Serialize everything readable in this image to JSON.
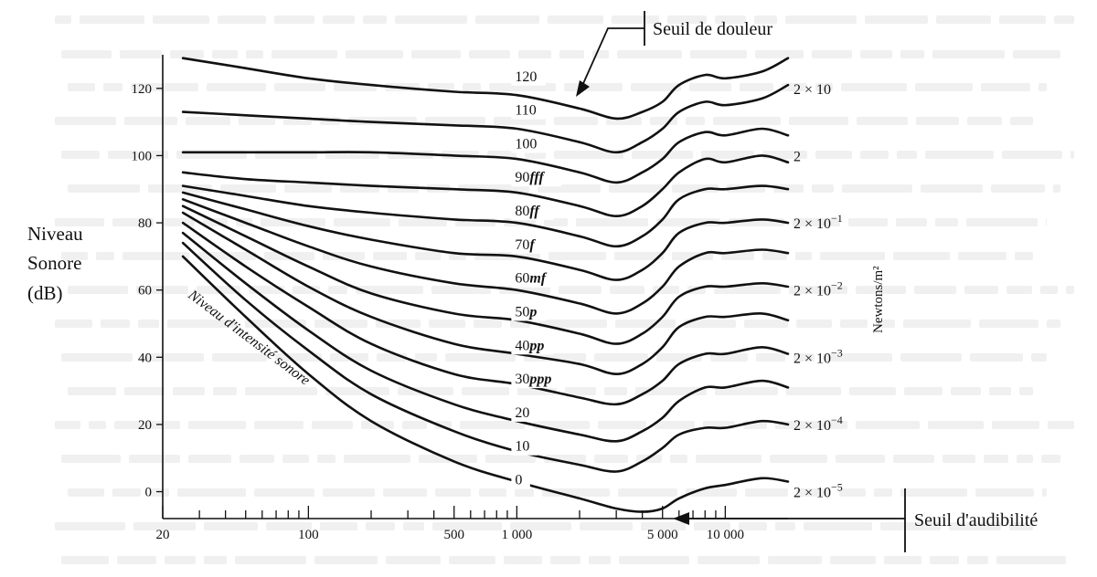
{
  "page": {
    "background_text_color": "#c9c9c9",
    "line_color": "#111111"
  },
  "chart_data": {
    "type": "line",
    "title": "",
    "ylabel_lines": [
      "Niveau",
      "Sonore",
      "(dB)"
    ],
    "right_axis_label": "Newtons/m²",
    "xscale": "log",
    "xlim": [
      20,
      20000
    ],
    "ylim": [
      -8,
      130
    ],
    "y_ticks": [
      "0",
      "20",
      "40",
      "60",
      "80",
      "100",
      "120"
    ],
    "x_tick_labels": [
      {
        "value": 20,
        "label": "20"
      },
      {
        "value": 100,
        "label": "100"
      },
      {
        "value": 500,
        "label": "500"
      },
      {
        "value": 1000,
        "label": "1 000"
      },
      {
        "value": 5000,
        "label": "5 000"
      },
      {
        "value": 10000,
        "label": "10 000"
      }
    ],
    "x_minor_ticks": [
      30,
      40,
      50,
      60,
      70,
      80,
      90,
      200,
      300,
      400,
      600,
      700,
      800,
      900,
      2000,
      3000,
      4000,
      6000,
      7000,
      8000,
      9000
    ],
    "diagonal_label": "Niveau d'intensité sonore",
    "callouts": {
      "pain": "Seuil de douleur",
      "hearing": "Seuil d'audibilité"
    },
    "pressure_labels": [
      {
        "base": "2 × 10",
        "exp": "",
        "level": 120
      },
      {
        "base": "2",
        "exp": "",
        "level": 100
      },
      {
        "base": "2 × 10",
        "exp": "−1",
        "level": 80
      },
      {
        "base": "2 × 10",
        "exp": "−2",
        "level": 60
      },
      {
        "base": "2 × 10",
        "exp": "−3",
        "level": 40
      },
      {
        "base": "2 × 10",
        "exp": "−4",
        "level": 20
      },
      {
        "base": "2 × 10",
        "exp": "−5",
        "level": 0
      }
    ],
    "series": [
      {
        "name": "120",
        "num": "120",
        "suffix": "",
        "label_pos": [
          1000,
          120
        ],
        "points": [
          [
            25,
            129
          ],
          [
            50,
            126
          ],
          [
            100,
            123
          ],
          [
            200,
            121
          ],
          [
            500,
            119
          ],
          [
            1000,
            118
          ],
          [
            2000,
            114
          ],
          [
            3000,
            111
          ],
          [
            4000,
            113
          ],
          [
            5000,
            116
          ],
          [
            6000,
            121
          ],
          [
            8000,
            124
          ],
          [
            10000,
            123
          ],
          [
            15000,
            125
          ],
          [
            20000,
            129
          ]
        ]
      },
      {
        "name": "110",
        "num": "110",
        "suffix": "",
        "label_pos": [
          1000,
          110
        ],
        "points": [
          [
            25,
            113
          ],
          [
            50,
            112
          ],
          [
            100,
            111
          ],
          [
            200,
            110
          ],
          [
            500,
            109
          ],
          [
            1000,
            108
          ],
          [
            2000,
            104
          ],
          [
            3000,
            101
          ],
          [
            4000,
            104
          ],
          [
            5000,
            108
          ],
          [
            6000,
            113
          ],
          [
            8000,
            116
          ],
          [
            10000,
            115
          ],
          [
            15000,
            117
          ],
          [
            20000,
            121
          ]
        ]
      },
      {
        "name": "100",
        "num": "100",
        "suffix": "",
        "label_pos": [
          1000,
          100
        ],
        "points": [
          [
            25,
            101
          ],
          [
            50,
            101
          ],
          [
            100,
            101
          ],
          [
            200,
            101
          ],
          [
            500,
            100
          ],
          [
            1000,
            99
          ],
          [
            2000,
            95
          ],
          [
            3000,
            92
          ],
          [
            4000,
            95
          ],
          [
            5000,
            99
          ],
          [
            6000,
            104
          ],
          [
            8000,
            107
          ],
          [
            10000,
            106
          ],
          [
            15000,
            108
          ],
          [
            20000,
            106
          ]
        ]
      },
      {
        "name": "90fff",
        "num": "90",
        "suffix": "fff",
        "label_pos": [
          1000,
          90
        ],
        "points": [
          [
            25,
            95
          ],
          [
            50,
            93
          ],
          [
            100,
            92
          ],
          [
            200,
            91
          ],
          [
            500,
            90
          ],
          [
            1000,
            89
          ],
          [
            2000,
            85
          ],
          [
            3000,
            82
          ],
          [
            4000,
            85
          ],
          [
            5000,
            90
          ],
          [
            6000,
            95
          ],
          [
            8000,
            99
          ],
          [
            10000,
            98
          ],
          [
            15000,
            100
          ],
          [
            20000,
            98
          ]
        ]
      },
      {
        "name": "80ff",
        "num": "80",
        "suffix": "ff",
        "label_pos": [
          1000,
          80
        ],
        "points": [
          [
            25,
            91
          ],
          [
            50,
            88
          ],
          [
            100,
            85
          ],
          [
            200,
            83
          ],
          [
            500,
            81
          ],
          [
            1000,
            80
          ],
          [
            2000,
            76
          ],
          [
            3000,
            73
          ],
          [
            4000,
            76
          ],
          [
            5000,
            81
          ],
          [
            6000,
            87
          ],
          [
            8000,
            90
          ],
          [
            10000,
            90
          ],
          [
            15000,
            91
          ],
          [
            20000,
            90
          ]
        ]
      },
      {
        "name": "70f",
        "num": "70",
        "suffix": "f",
        "label_pos": [
          1000,
          70
        ],
        "points": [
          [
            25,
            89
          ],
          [
            50,
            84
          ],
          [
            100,
            79
          ],
          [
            200,
            75
          ],
          [
            500,
            71
          ],
          [
            1000,
            70
          ],
          [
            2000,
            66
          ],
          [
            3000,
            63
          ],
          [
            4000,
            66
          ],
          [
            5000,
            71
          ],
          [
            6000,
            77
          ],
          [
            8000,
            80
          ],
          [
            10000,
            80
          ],
          [
            15000,
            81
          ],
          [
            20000,
            80
          ]
        ]
      },
      {
        "name": "60mf",
        "num": "60",
        "suffix": "mf",
        "label_pos": [
          1000,
          60
        ],
        "points": [
          [
            25,
            87
          ],
          [
            50,
            80
          ],
          [
            100,
            73
          ],
          [
            200,
            67
          ],
          [
            500,
            62
          ],
          [
            1000,
            60
          ],
          [
            2000,
            56
          ],
          [
            3000,
            53
          ],
          [
            4000,
            56
          ],
          [
            5000,
            61
          ],
          [
            6000,
            67
          ],
          [
            8000,
            71
          ],
          [
            10000,
            71
          ],
          [
            15000,
            72
          ],
          [
            20000,
            71
          ]
        ]
      },
      {
        "name": "50p",
        "num": "50",
        "suffix": "p",
        "label_pos": [
          1000,
          50
        ],
        "points": [
          [
            25,
            85
          ],
          [
            50,
            76
          ],
          [
            100,
            67
          ],
          [
            200,
            59
          ],
          [
            500,
            53
          ],
          [
            1000,
            51
          ],
          [
            2000,
            47
          ],
          [
            3000,
            44
          ],
          [
            4000,
            47
          ],
          [
            5000,
            52
          ],
          [
            6000,
            58
          ],
          [
            8000,
            61
          ],
          [
            10000,
            61
          ],
          [
            15000,
            62
          ],
          [
            20000,
            61
          ]
        ]
      },
      {
        "name": "40pp",
        "num": "40",
        "suffix": "pp",
        "label_pos": [
          1000,
          40
        ],
        "points": [
          [
            25,
            83
          ],
          [
            50,
            72
          ],
          [
            100,
            61
          ],
          [
            200,
            52
          ],
          [
            500,
            44
          ],
          [
            1000,
            41
          ],
          [
            2000,
            38
          ],
          [
            3000,
            35
          ],
          [
            4000,
            38
          ],
          [
            5000,
            43
          ],
          [
            6000,
            49
          ],
          [
            8000,
            52
          ],
          [
            10000,
            52
          ],
          [
            15000,
            53
          ],
          [
            20000,
            51
          ]
        ]
      },
      {
        "name": "30ppp",
        "num": "30",
        "suffix": "ppp",
        "label_pos": [
          1000,
          30
        ],
        "points": [
          [
            25,
            80
          ],
          [
            50,
            67
          ],
          [
            100,
            55
          ],
          [
            200,
            44
          ],
          [
            500,
            35
          ],
          [
            1000,
            32
          ],
          [
            2000,
            28
          ],
          [
            3000,
            26
          ],
          [
            4000,
            29
          ],
          [
            5000,
            33
          ],
          [
            6000,
            38
          ],
          [
            8000,
            41
          ],
          [
            10000,
            41
          ],
          [
            15000,
            43
          ],
          [
            20000,
            41
          ]
        ]
      },
      {
        "name": "20",
        "num": "20",
        "suffix": "",
        "label_pos": [
          1000,
          20
        ],
        "points": [
          [
            25,
            77
          ],
          [
            50,
            62
          ],
          [
            100,
            48
          ],
          [
            200,
            36
          ],
          [
            500,
            26
          ],
          [
            1000,
            21
          ],
          [
            2000,
            17
          ],
          [
            3000,
            15
          ],
          [
            4000,
            18
          ],
          [
            5000,
            22
          ],
          [
            6000,
            27
          ],
          [
            8000,
            31
          ],
          [
            10000,
            31
          ],
          [
            15000,
            33
          ],
          [
            20000,
            31
          ]
        ]
      },
      {
        "name": "10",
        "num": "10",
        "suffix": "",
        "label_pos": [
          1000,
          10
        ],
        "points": [
          [
            25,
            74
          ],
          [
            50,
            57
          ],
          [
            100,
            42
          ],
          [
            200,
            29
          ],
          [
            500,
            18
          ],
          [
            1000,
            12
          ],
          [
            2000,
            8
          ],
          [
            3000,
            6
          ],
          [
            4000,
            9
          ],
          [
            5000,
            13
          ],
          [
            6000,
            17
          ],
          [
            8000,
            19
          ],
          [
            10000,
            19
          ],
          [
            15000,
            21
          ],
          [
            20000,
            20
          ]
        ]
      },
      {
        "name": "0",
        "num": "0",
        "suffix": "",
        "label_pos": [
          1000,
          0
        ],
        "points": [
          [
            25,
            70
          ],
          [
            50,
            52
          ],
          [
            100,
            35
          ],
          [
            200,
            21
          ],
          [
            500,
            9
          ],
          [
            1000,
            3
          ],
          [
            2000,
            -2
          ],
          [
            3000,
            -5
          ],
          [
            4000,
            -6
          ],
          [
            5000,
            -5
          ],
          [
            6000,
            -2
          ],
          [
            8000,
            1
          ],
          [
            10000,
            2
          ],
          [
            15000,
            4
          ],
          [
            20000,
            3
          ]
        ]
      }
    ]
  }
}
